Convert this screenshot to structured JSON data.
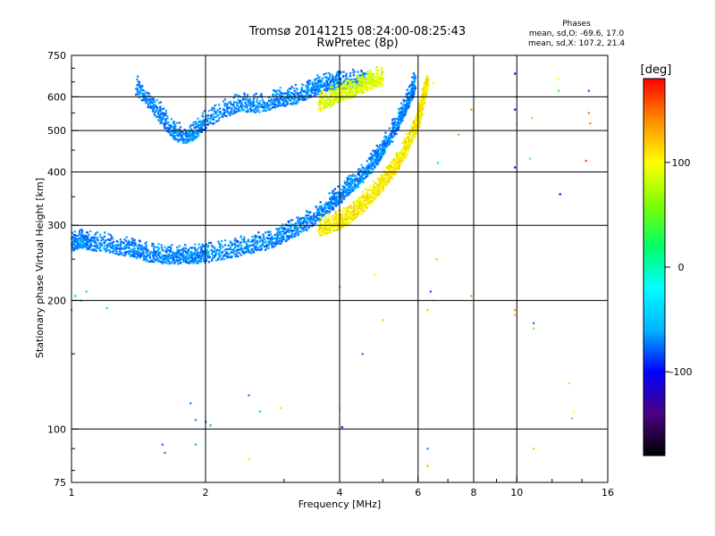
{
  "chart_data": {
    "type": "scatter",
    "title_line1": "Tromsø 20141215 08:24:00-08:25:43",
    "title_line2": "RwPretec (8p)",
    "info_title": "Phases",
    "info_line1": "mean, sd,O: -69.6, 17.0",
    "info_line2": "mean, sd,X: 107.2, 21.4",
    "xlabel": "Frequency [MHz]",
    "ylabel": "Stationary phase Virtual Height [km]",
    "xscale": "log",
    "yscale": "log",
    "xlim": [
      1,
      16
    ],
    "ylim": [
      75,
      750
    ],
    "x_ticks": [
      {
        "value": 1,
        "label": "1"
      },
      {
        "value": 2,
        "label": "2"
      },
      {
        "value": 4,
        "label": "4"
      },
      {
        "value": 6,
        "label": "6"
      },
      {
        "value": 8,
        "label": "8"
      },
      {
        "value": 10,
        "label": "10"
      },
      {
        "value": 16,
        "label": "16"
      }
    ],
    "y_ticks": [
      {
        "value": 75,
        "label": "75"
      },
      {
        "value": 100,
        "label": "100"
      },
      {
        "value": 200,
        "label": "200"
      },
      {
        "value": 300,
        "label": "300"
      },
      {
        "value": 400,
        "label": "400"
      },
      {
        "value": 500,
        "label": "500"
      },
      {
        "value": 600,
        "label": "600"
      },
      {
        "value": 750,
        "label": "750"
      }
    ],
    "x_gridlines": [
      2,
      4,
      6,
      8,
      10
    ],
    "y_gridlines": [
      100,
      200,
      300,
      400,
      500,
      600
    ],
    "grid": true,
    "colorbar": {
      "label": "[deg]",
      "range": [
        -180,
        180
      ],
      "ticks": [
        {
          "value": 100,
          "label": "100"
        },
        {
          "value": 0,
          "label": "0"
        },
        {
          "value": -100,
          "label": "-100"
        }
      ],
      "colors": [
        "#000000",
        "#4b0082",
        "#0000ff",
        "#00b4ff",
        "#00ffff",
        "#00ff66",
        "#80ff00",
        "#ffff00",
        "#ff8c00",
        "#ff0000"
      ]
    },
    "series": [
      {
        "trace": "O-mode F2 lower",
        "phase": -70,
        "spread": 14,
        "points": [
          [
            1.0,
            262
          ],
          [
            1.05,
            268
          ],
          [
            1.1,
            265
          ],
          [
            1.2,
            262
          ],
          [
            1.3,
            258
          ],
          [
            1.4,
            253
          ],
          [
            1.5,
            249
          ],
          [
            1.6,
            247
          ],
          [
            1.7,
            246
          ],
          [
            1.8,
            246
          ],
          [
            1.9,
            247
          ],
          [
            2.0,
            248
          ],
          [
            2.2,
            252
          ],
          [
            2.4,
            257
          ],
          [
            2.6,
            262
          ],
          [
            2.8,
            268
          ],
          [
            3.0,
            276
          ],
          [
            3.2,
            286
          ],
          [
            3.4,
            297
          ],
          [
            3.6,
            310
          ],
          [
            3.8,
            325
          ],
          [
            4.0,
            340
          ],
          [
            4.2,
            356
          ],
          [
            4.4,
            372
          ],
          [
            4.6,
            392
          ],
          [
            4.8,
            414
          ],
          [
            5.0,
            440
          ],
          [
            5.2,
            470
          ],
          [
            5.4,
            505
          ],
          [
            5.6,
            545
          ],
          [
            5.8,
            590
          ],
          [
            5.9,
            625
          ]
        ]
      },
      {
        "trace": "O-mode F2 upper",
        "phase": -70,
        "spread": 14,
        "points": [
          [
            1.4,
            610
          ],
          [
            1.5,
            570
          ],
          [
            1.6,
            520
          ],
          [
            1.7,
            480
          ],
          [
            1.8,
            470
          ],
          [
            1.9,
            480
          ],
          [
            2.0,
            510
          ],
          [
            2.2,
            540
          ],
          [
            2.4,
            560
          ],
          [
            2.6,
            555
          ],
          [
            2.8,
            565
          ],
          [
            3.0,
            575
          ],
          [
            3.2,
            585
          ],
          [
            3.4,
            600
          ],
          [
            3.6,
            615
          ],
          [
            3.8,
            625
          ],
          [
            4.0,
            630
          ],
          [
            4.3,
            635
          ],
          [
            4.6,
            640
          ]
        ]
      },
      {
        "trace": "X-mode F2",
        "phase": 105,
        "spread": 20,
        "points": [
          [
            3.6,
            286
          ],
          [
            3.8,
            290
          ],
          [
            4.0,
            296
          ],
          [
            4.2,
            305
          ],
          [
            4.4,
            318
          ],
          [
            4.6,
            332
          ],
          [
            4.8,
            348
          ],
          [
            5.0,
            366
          ],
          [
            5.2,
            385
          ],
          [
            5.4,
            408
          ],
          [
            5.6,
            435
          ],
          [
            5.8,
            470
          ],
          [
            6.0,
            510
          ],
          [
            6.1,
            550
          ],
          [
            6.2,
            590
          ],
          [
            6.3,
            630
          ]
        ]
      },
      {
        "trace": "X-mode F2 upper",
        "phase": 90,
        "spread": 20,
        "points": [
          [
            3.6,
            560
          ],
          [
            3.8,
            575
          ],
          [
            4.0,
            590
          ],
          [
            4.2,
            600
          ],
          [
            4.4,
            612
          ],
          [
            4.6,
            625
          ],
          [
            4.8,
            638
          ],
          [
            5.0,
            645
          ]
        ]
      }
    ],
    "isolated_points": [
      {
        "x": 1.02,
        "y": 205,
        "phase": -50
      },
      {
        "x": 1.05,
        "y": 200,
        "phase": -50
      },
      {
        "x": 1.08,
        "y": 210,
        "phase": -45
      },
      {
        "x": 1.0,
        "y": 190,
        "phase": -40
      },
      {
        "x": 1.2,
        "y": 192,
        "phase": -40
      },
      {
        "x": 1.6,
        "y": 92,
        "phase": -75
      },
      {
        "x": 1.62,
        "y": 88,
        "phase": -70
      },
      {
        "x": 1.85,
        "y": 115,
        "phase": -70
      },
      {
        "x": 1.9,
        "y": 105,
        "phase": -65
      },
      {
        "x": 2.0,
        "y": 104,
        "phase": -70
      },
      {
        "x": 2.05,
        "y": 102,
        "phase": -60
      },
      {
        "x": 1.9,
        "y": 92,
        "phase": -60
      },
      {
        "x": 2.5,
        "y": 120,
        "phase": -70
      },
      {
        "x": 2.65,
        "y": 110,
        "phase": -50
      },
      {
        "x": 2.5,
        "y": 85,
        "phase": 110
      },
      {
        "x": 2.95,
        "y": 112,
        "phase": 110
      },
      {
        "x": 4.05,
        "y": 101,
        "phase": -100
      },
      {
        "x": 4.0,
        "y": 112,
        "phase": 110
      },
      {
        "x": 4.5,
        "y": 150,
        "phase": -70
      },
      {
        "x": 5.0,
        "y": 180,
        "phase": 120
      },
      {
        "x": 4.0,
        "y": 215,
        "phase": 130
      },
      {
        "x": 4.8,
        "y": 230,
        "phase": 100
      },
      {
        "x": 6.4,
        "y": 210,
        "phase": -80
      },
      {
        "x": 6.5,
        "y": 200,
        "phase": 100
      },
      {
        "x": 6.3,
        "y": 190,
        "phase": 120
      },
      {
        "x": 6.6,
        "y": 250,
        "phase": 120
      },
      {
        "x": 6.3,
        "y": 90,
        "phase": -70
      },
      {
        "x": 6.3,
        "y": 82,
        "phase": 130
      },
      {
        "x": 7.9,
        "y": 205,
        "phase": 140
      },
      {
        "x": 9.9,
        "y": 190,
        "phase": 130
      },
      {
        "x": 9.9,
        "y": 185,
        "phase": 120
      },
      {
        "x": 10.9,
        "y": 177,
        "phase": -70
      },
      {
        "x": 10.9,
        "y": 172,
        "phase": 60
      },
      {
        "x": 13.1,
        "y": 128,
        "phase": 110
      },
      {
        "x": 13.4,
        "y": 110,
        "phase": 100
      },
      {
        "x": 13.3,
        "y": 106,
        "phase": 40
      },
      {
        "x": 10.9,
        "y": 90,
        "phase": 120
      },
      {
        "x": 9.9,
        "y": 680,
        "phase": -100
      },
      {
        "x": 9.95,
        "y": 600,
        "phase": 120
      },
      {
        "x": 9.9,
        "y": 560,
        "phase": -110
      },
      {
        "x": 10.0,
        "y": 520,
        "phase": 110
      },
      {
        "x": 9.9,
        "y": 410,
        "phase": -120
      },
      {
        "x": 10.8,
        "y": 535,
        "phase": 120
      },
      {
        "x": 10.7,
        "y": 430,
        "phase": 40
      },
      {
        "x": 12.4,
        "y": 660,
        "phase": 100
      },
      {
        "x": 12.4,
        "y": 620,
        "phase": 30
      },
      {
        "x": 14.5,
        "y": 620,
        "phase": -80
      },
      {
        "x": 14.5,
        "y": 550,
        "phase": 150
      },
      {
        "x": 14.6,
        "y": 520,
        "phase": 140
      },
      {
        "x": 14.3,
        "y": 425,
        "phase": 160
      },
      {
        "x": 12.5,
        "y": 355,
        "phase": -110
      },
      {
        "x": 7.9,
        "y": 560,
        "phase": 140
      },
      {
        "x": 7.4,
        "y": 490,
        "phase": 140
      },
      {
        "x": 6.65,
        "y": 420,
        "phase": -30
      },
      {
        "x": 6.5,
        "y": 645,
        "phase": 90
      }
    ]
  }
}
